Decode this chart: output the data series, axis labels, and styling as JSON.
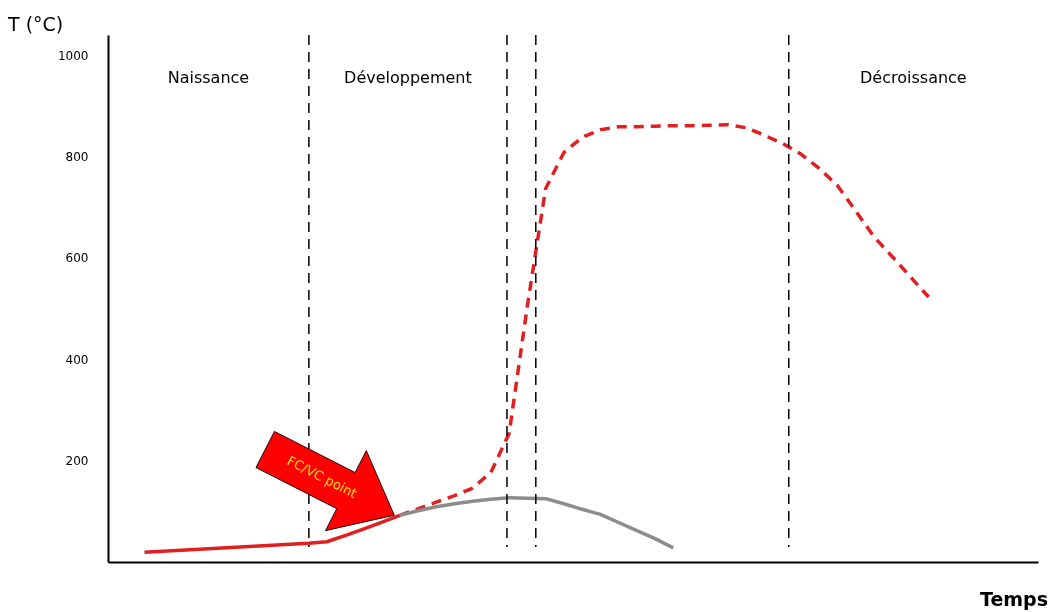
{
  "chart_data": {
    "type": "line",
    "xlabel": "Temps",
    "ylabel": "T (°C)",
    "categories": [
      null,
      null,
      null,
      null,
      null,
      null,
      null,
      null,
      null,
      null,
      null,
      null,
      null,
      null,
      null,
      null,
      null,
      null,
      null,
      null,
      null,
      null,
      null,
      null,
      null,
      null,
      null,
      null,
      null,
      null,
      null,
      null,
      null,
      null,
      null,
      null,
      null,
      null,
      null,
      null,
      null,
      null,
      null,
      null,
      null,
      null,
      null,
      null,
      null,
      null
    ],
    "ylim": [
      0,
      1040
    ],
    "yticks": [
      200,
      400,
      600,
      800,
      1000
    ],
    "tick_labels": "y",
    "grid": false,
    "marker": "none",
    "series": [
      {
        "color": "#e02020",
        "line_style": "solid",
        "values": [
          null,
          19,
          21,
          23,
          25,
          27,
          29,
          31,
          33,
          35,
          37,
          40,
          52,
          65,
          78,
          92,
          null,
          null,
          null,
          null,
          null,
          null,
          null,
          null,
          null,
          null,
          null,
          null,
          null,
          null,
          null,
          null,
          null,
          null,
          null,
          null,
          null,
          null,
          null,
          null,
          null,
          null,
          null,
          null,
          null,
          null,
          null,
          null,
          null,
          null
        ]
      },
      {
        "color": "#e02020",
        "line_style": "dashed",
        "values": [
          null,
          null,
          null,
          null,
          null,
          null,
          null,
          null,
          null,
          null,
          null,
          null,
          null,
          null,
          null,
          92,
          105,
          118,
          131,
          146,
          177,
          254,
          506,
          737,
          808,
          838,
          853,
          859,
          859,
          860,
          861,
          861,
          862,
          863,
          857,
          842,
          826,
          805,
          777,
          743,
          693,
          642,
          603,
          563,
          523,
          null,
          null,
          null,
          null,
          null
        ]
      },
      {
        "color": "#8c8c8c",
        "line_style": "solid",
        "values": [
          null,
          null,
          null,
          null,
          null,
          null,
          null,
          null,
          null,
          null,
          null,
          null,
          null,
          null,
          null,
          92,
          101,
          109,
          115,
          120,
          124,
          127,
          126,
          125,
          115,
          104,
          94,
          78,
          62,
          46,
          28,
          null,
          null,
          null,
          null,
          null,
          null,
          null,
          null,
          null,
          null,
          null,
          null,
          null,
          null,
          null,
          null,
          null,
          null,
          null
        ]
      }
    ],
    "annotations": [
      "Naissance",
      "Développement",
      "Décroissance",
      "FC/VC point"
    ]
  }
}
